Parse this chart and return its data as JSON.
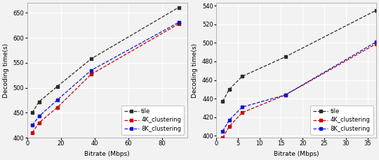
{
  "left": {
    "xlabel": "Bitrate (Mbps)",
    "ylabel": "Decoding time(s)",
    "xlim": [
      0,
      95
    ],
    "ylim": [
      400,
      670
    ],
    "yticks": [
      400,
      450,
      500,
      550,
      600,
      650
    ],
    "xticks": [
      0,
      20,
      40,
      60,
      80
    ],
    "tile_x": [
      3,
      7,
      18,
      38,
      90
    ],
    "tile_y": [
      450,
      472,
      503,
      558,
      661
    ],
    "k4_x": [
      3,
      7,
      18,
      38,
      90
    ],
    "k4_y": [
      410,
      430,
      461,
      527,
      628
    ],
    "k8_x": [
      3,
      7,
      18,
      38,
      90
    ],
    "k8_y": [
      425,
      443,
      476,
      535,
      631
    ]
  },
  "right": {
    "xlabel": "Bitrate (Mbps)",
    "ylabel": "Decoding time(s)",
    "xlim": [
      0,
      37
    ],
    "ylim": [
      398,
      543
    ],
    "yticks": [
      400,
      420,
      440,
      460,
      480,
      500,
      520,
      540
    ],
    "xticks": [
      0,
      5,
      10,
      15,
      20,
      25,
      30,
      35
    ],
    "tile_x": [
      1.5,
      3,
      6,
      16,
      37
    ],
    "tile_y": [
      437,
      450,
      464,
      485,
      535
    ],
    "k4_x": [
      1.5,
      3,
      6,
      16,
      37
    ],
    "k4_y": [
      398,
      410,
      425,
      444,
      499
    ],
    "k8_x": [
      1.5,
      3,
      6,
      16,
      37
    ],
    "k8_y": [
      405,
      417,
      431,
      444,
      501
    ]
  },
  "tile_color": "#2b2b2b",
  "k4_color": "#cc0000",
  "k8_color": "#1414cc",
  "linestyle": "--",
  "legend_labels": [
    "tile",
    "4K_clustering",
    "8K_clustering"
  ],
  "fontsize_label": 6.5,
  "fontsize_tick": 6,
  "fontsize_legend": 6,
  "markersize": 3.0,
  "linewidth": 0.9,
  "bg_color": "#f2f2f2",
  "grid_color": "#ffffff",
  "grid_lw": 0.8
}
